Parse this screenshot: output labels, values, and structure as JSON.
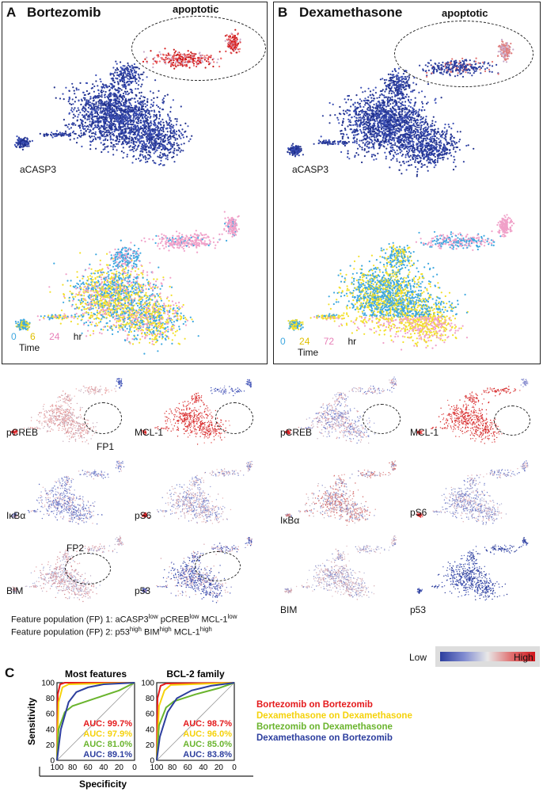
{
  "panelA": {
    "letter": "A",
    "title": "Bortezomib",
    "apoptotic": "apoptotic",
    "marker": "aCASP3",
    "time": {
      "t1": "0",
      "t2": "6",
      "t3": "24",
      "unit": "hr",
      "label": "Time"
    }
  },
  "panelB": {
    "letter": "B",
    "title": "Dexamethasone",
    "apoptotic": "apoptotic",
    "marker": "aCASP3",
    "time": {
      "t1": "0",
      "t2": "24",
      "t3": "72",
      "unit": "hr",
      "label": "Time"
    }
  },
  "small_multiples": {
    "left": [
      "pCREB",
      "MCL-1",
      "IκBα",
      "pS6",
      "BIM",
      "p53"
    ],
    "right": [
      "pCREB",
      "MCL-1",
      "IκBα",
      "pS6",
      "BIM",
      "p53"
    ],
    "fp1": "FP1",
    "fp2": "FP2"
  },
  "feature_populations": {
    "fp1_prefix": "Feature population (FP) 1: aCASP3",
    "fp1_sup1": "low",
    "fp1_mid1": " pCREB",
    "fp1_sup2": "low",
    "fp1_mid2": " MCL-1",
    "fp1_sup3": "low",
    "fp2_prefix": "Feature population (FP) 2: p53",
    "fp2_sup1": "high",
    "fp2_mid1": " BIM",
    "fp2_sup2": "high",
    "fp2_mid2": " MCL-1",
    "fp2_sup3": "high"
  },
  "colorbar": {
    "low": "Low",
    "high": "High"
  },
  "colors": {
    "red": "#e41a1c",
    "yellow": "#f5d20a",
    "green": "#6ab42d",
    "blue": "#2c3e9e",
    "tblue": "#3ea8e0",
    "tyellow": "#f2e02a",
    "tpink": "#f0a0c8"
  },
  "panelC": {
    "letter": "C",
    "chart_data": [
      {
        "type": "line",
        "title": "Most features",
        "xlabel": "Specificity",
        "ylabel": "Sensitivity",
        "xticks": [
          "100",
          "80",
          "60",
          "40",
          "20",
          "0"
        ],
        "yticks": [
          "0",
          "20",
          "40",
          "60",
          "80",
          "100"
        ],
        "xlim": [
          100,
          0
        ],
        "ylim": [
          0,
          100
        ],
        "series": [
          {
            "name": "Bortezomib on Bortezomib",
            "auc": "AUC: 99.7%",
            "color": "#e41a1c",
            "x": [
              100,
              99,
              96,
              90,
              0
            ],
            "y": [
              0,
              85,
              98,
              100,
              100
            ]
          },
          {
            "name": "Dexamethasone on Dexamethasone",
            "auc": "AUC: 97.9%",
            "color": "#f5d20a",
            "x": [
              100,
              98,
              93,
              85,
              0
            ],
            "y": [
              0,
              75,
              94,
              98,
              100
            ]
          },
          {
            "name": "Bortezomib on Dexamethasone",
            "auc": "AUC: 81.0%",
            "color": "#6ab42d",
            "x": [
              100,
              98,
              90,
              80,
              50,
              20,
              0
            ],
            "y": [
              0,
              40,
              62,
              70,
              80,
              90,
              100
            ]
          },
          {
            "name": "Dexamethasone on Bortezomib",
            "auc": "AUC: 89.1%",
            "color": "#2c3e9e",
            "x": [
              100,
              95,
              85,
              75,
              60,
              40,
              0
            ],
            "y": [
              0,
              40,
              75,
              88,
              94,
              98,
              100
            ]
          }
        ]
      },
      {
        "type": "line",
        "title": "BCL-2 family",
        "xlabel": "Specificity",
        "ylabel": "Sensitivity",
        "xticks": [
          "100",
          "80",
          "60",
          "40",
          "20",
          "0"
        ],
        "yticks": [
          "0",
          "20",
          "40",
          "60",
          "80",
          "100"
        ],
        "xlim": [
          100,
          0
        ],
        "ylim": [
          0,
          100
        ],
        "series": [
          {
            "name": "Bortezomib on Bortezomib",
            "auc": "AUC: 98.7%",
            "color": "#e41a1c",
            "x": [
              100,
              99,
              95,
              88,
              0
            ],
            "y": [
              0,
              80,
              96,
              99,
              100
            ]
          },
          {
            "name": "Dexamethasone on Dexamethasone",
            "auc": "AUC: 96.0%",
            "color": "#f5d20a",
            "x": [
              100,
              97,
              90,
              82,
              0
            ],
            "y": [
              0,
              70,
              90,
              97,
              100
            ]
          },
          {
            "name": "Bortezomib on Dexamethasone",
            "auc": "AUC: 85.0%",
            "color": "#6ab42d",
            "x": [
              100,
              97,
              88,
              78,
              50,
              20,
              0
            ],
            "y": [
              0,
              45,
              68,
              76,
              85,
              93,
              100
            ]
          },
          {
            "name": "Dexamethasone on Bortezomib",
            "auc": "AUC: 83.8%",
            "color": "#2c3e9e",
            "x": [
              100,
              96,
              86,
              74,
              55,
              30,
              0
            ],
            "y": [
              0,
              30,
              62,
              80,
              90,
              96,
              100
            ]
          }
        ]
      }
    ],
    "legend": [
      "Bortezomib on Bortezomib",
      "Dexamethasone on Dexamethasone",
      "Bortezomib on Dexamethasone",
      "Dexamethasone on Bortezomib"
    ]
  }
}
